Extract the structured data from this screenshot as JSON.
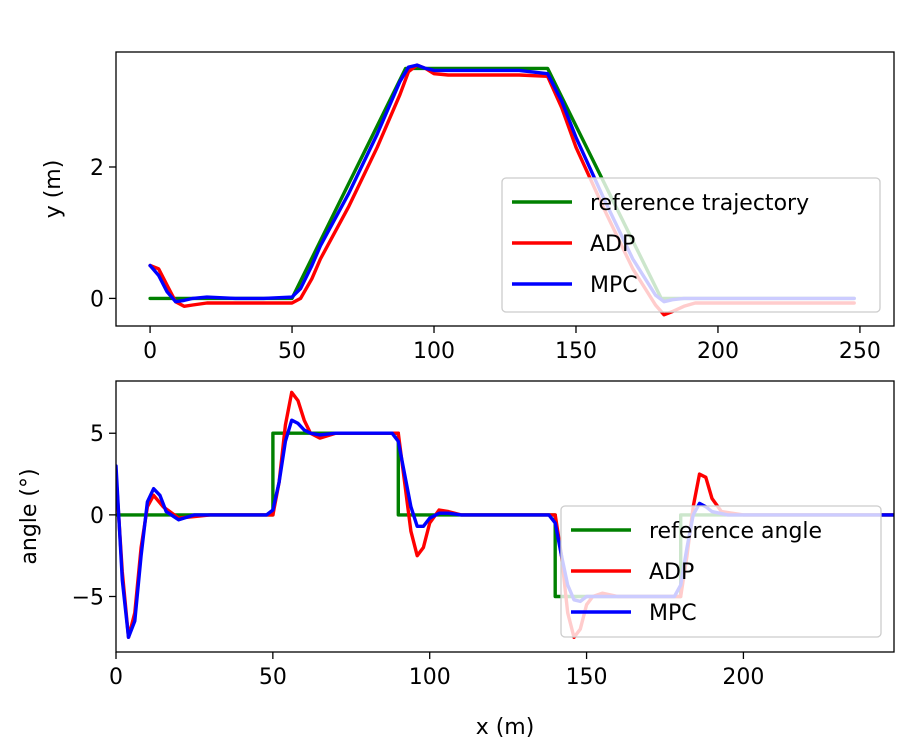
{
  "chart_data": [
    {
      "type": "line",
      "xlabel": "",
      "ylabel": "y (m)",
      "xlim": [
        -12,
        262
      ],
      "ylim": [
        -0.42,
        3.75
      ],
      "xticks": [
        0,
        50,
        100,
        150,
        200,
        250
      ],
      "yticks": [
        0,
        2
      ],
      "xtick_labels": [
        "0",
        "50",
        "100",
        "150",
        "200",
        "250"
      ],
      "ytick_labels": [
        "0",
        "2"
      ],
      "legend_position": "lower-right",
      "series": [
        {
          "name": "reference trajectory",
          "color": "#008000",
          "x": [
            0,
            50,
            90,
            140,
            180,
            248
          ],
          "y": [
            0,
            0,
            3.5,
            3.5,
            0,
            0
          ]
        },
        {
          "name": "ADP",
          "color": "#ff0000",
          "x": [
            0,
            3,
            6,
            9,
            12,
            15,
            20,
            30,
            40,
            50,
            53,
            57,
            60,
            70,
            80,
            88,
            91,
            94,
            97,
            100,
            105,
            110,
            120,
            130,
            140,
            145,
            150,
            160,
            170,
            178,
            181,
            184,
            188,
            192,
            200,
            220,
            248
          ],
          "y": [
            0.5,
            0.45,
            0.2,
            -0.05,
            -0.12,
            -0.1,
            -0.07,
            -0.07,
            -0.07,
            -0.07,
            0.0,
            0.3,
            0.6,
            1.4,
            2.3,
            3.1,
            3.45,
            3.55,
            3.5,
            3.42,
            3.4,
            3.4,
            3.4,
            3.4,
            3.38,
            2.9,
            2.3,
            1.35,
            0.45,
            -0.1,
            -0.25,
            -0.2,
            -0.12,
            -0.07,
            -0.07,
            -0.07,
            -0.07
          ]
        },
        {
          "name": "MPC",
          "color": "#0000ff",
          "x": [
            0,
            3,
            6,
            9,
            12,
            15,
            20,
            30,
            40,
            50,
            53,
            57,
            60,
            70,
            80,
            88,
            91,
            94,
            97,
            100,
            105,
            110,
            120,
            130,
            140,
            145,
            150,
            160,
            170,
            178,
            181,
            184,
            188,
            192,
            200,
            220,
            248
          ],
          "y": [
            0.5,
            0.35,
            0.1,
            -0.05,
            -0.03,
            0.0,
            0.02,
            0.0,
            0.0,
            0.02,
            0.15,
            0.5,
            0.8,
            1.6,
            2.5,
            3.3,
            3.52,
            3.55,
            3.5,
            3.47,
            3.47,
            3.47,
            3.47,
            3.47,
            3.42,
            3.0,
            2.45,
            1.5,
            0.6,
            0.05,
            -0.05,
            -0.02,
            0.0,
            0.0,
            0.0,
            0.0,
            0.0
          ]
        }
      ]
    },
    {
      "type": "line",
      "xlabel": "x (m)",
      "ylabel": "angle (°)",
      "xlim": [
        0,
        248
      ],
      "ylim": [
        -8.4,
        8.2
      ],
      "xticks": [
        0,
        50,
        100,
        150,
        200
      ],
      "yticks": [
        5,
        0,
        -5
      ],
      "xtick_labels": [
        "0",
        "50",
        "100",
        "150",
        "200"
      ],
      "ytick_labels": [
        "5",
        "0",
        "−5"
      ],
      "legend_position": "lower-right",
      "series": [
        {
          "name": "reference angle",
          "color": "#008000",
          "x": [
            0,
            50,
            50,
            90,
            90,
            140,
            140,
            180,
            180,
            248
          ],
          "y": [
            0,
            0,
            5,
            5,
            0,
            0,
            -5,
            -5,
            0,
            0
          ]
        },
        {
          "name": "ADP",
          "color": "#ff0000",
          "x": [
            0,
            2,
            4,
            6,
            8,
            10,
            12,
            15,
            20,
            25,
            30,
            40,
            50,
            52,
            54,
            56,
            58,
            60,
            62,
            65,
            70,
            80,
            90,
            92,
            94,
            96,
            98,
            100,
            103,
            106,
            110,
            120,
            130,
            140,
            142,
            144,
            146,
            148,
            150,
            152,
            155,
            160,
            170,
            180,
            182,
            184,
            186,
            188,
            190,
            193,
            200,
            220,
            248
          ],
          "y": [
            2.5,
            -3.5,
            -7.5,
            -6.0,
            -2.0,
            0.5,
            1.2,
            0.5,
            -0.2,
            -0.1,
            0.0,
            0.0,
            0.0,
            2.0,
            5.5,
            7.5,
            7.0,
            5.8,
            5.0,
            4.7,
            5.0,
            5.0,
            5.0,
            2.0,
            -1.0,
            -2.5,
            -2.0,
            -0.5,
            0.3,
            0.2,
            0.0,
            0.0,
            0.0,
            0.0,
            -2.5,
            -6.0,
            -7.5,
            -7.0,
            -5.5,
            -5.0,
            -4.8,
            -5.0,
            -5.0,
            -5.0,
            -2.5,
            0.5,
            2.5,
            2.3,
            1.0,
            0.2,
            0.0,
            0.0,
            0.0
          ]
        },
        {
          "name": "MPC",
          "color": "#0000ff",
          "x": [
            0,
            2,
            4,
            6,
            8,
            10,
            12,
            14,
            16,
            20,
            25,
            30,
            40,
            48,
            50,
            52,
            54,
            56,
            58,
            60,
            62,
            65,
            70,
            80,
            88,
            90,
            92,
            94,
            96,
            98,
            100,
            103,
            106,
            110,
            120,
            130,
            138,
            140,
            142,
            144,
            146,
            148,
            150,
            155,
            160,
            170,
            178,
            180,
            182,
            184,
            186,
            188,
            190,
            195,
            200,
            220,
            248
          ],
          "y": [
            3.0,
            -4.0,
            -7.5,
            -6.5,
            -2.5,
            0.8,
            1.6,
            1.2,
            0.2,
            -0.3,
            0.0,
            0.0,
            0.0,
            0.0,
            0.3,
            2.0,
            4.5,
            5.8,
            5.6,
            5.2,
            5.0,
            4.9,
            5.0,
            5.0,
            5.0,
            4.5,
            2.5,
            0.5,
            -0.7,
            -0.7,
            -0.2,
            0.1,
            0.1,
            0.0,
            0.0,
            0.0,
            0.0,
            -0.5,
            -2.5,
            -4.3,
            -5.2,
            -5.3,
            -5.0,
            -5.0,
            -5.0,
            -5.0,
            -5.0,
            -4.3,
            -2.0,
            0.0,
            0.7,
            0.5,
            0.2,
            0.0,
            0.0,
            0.0,
            0.0
          ]
        }
      ]
    }
  ]
}
